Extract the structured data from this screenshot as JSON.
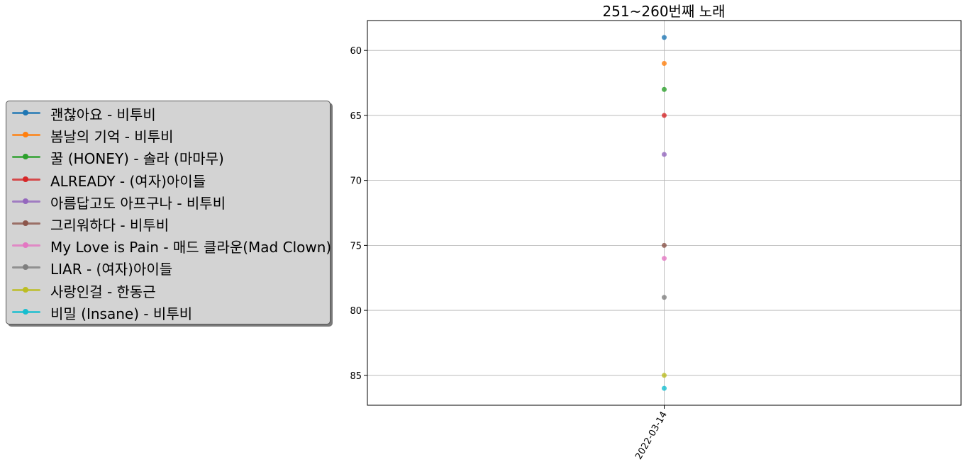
{
  "chart_data": {
    "type": "line",
    "title": "251~260번째 노래",
    "xlabel": "",
    "ylabel": "",
    "x": [
      "2022-03-14"
    ],
    "yaxis_inverted": true,
    "ylim": [
      87.3,
      57.7
    ],
    "yticks": [
      60,
      65,
      70,
      75,
      80,
      85
    ],
    "grid": true,
    "legend_position": "left, outside plot area",
    "series": [
      {
        "name": "괜찮아요 - 비투비",
        "color": "#1f77b4",
        "values": [
          59
        ]
      },
      {
        "name": "봄날의 기억 - 비투비",
        "color": "#ff7f0e",
        "values": [
          61
        ]
      },
      {
        "name": "꿀 (HONEY) - 솔라 (마마무)",
        "color": "#2ca02c",
        "values": [
          63
        ]
      },
      {
        "name": "ALREADY - (여자)아이들",
        "color": "#d62728",
        "values": [
          65
        ]
      },
      {
        "name": "아름답고도 아프구나 - 비투비",
        "color": "#9467bd",
        "values": [
          68
        ]
      },
      {
        "name": "그리워하다 - 비투비",
        "color": "#8c564b",
        "values": [
          75
        ]
      },
      {
        "name": "My Love is Pain - 매드 클라운(Mad Clown)",
        "color": "#e377c2",
        "values": [
          76
        ]
      },
      {
        "name": "LIAR - (여자)아이들",
        "color": "#7f7f7f",
        "values": [
          79
        ]
      },
      {
        "name": "사랑인걸 - 한동근",
        "color": "#bcbd22",
        "values": [
          85
        ]
      },
      {
        "name": "비밀 (Insane) - 비투비",
        "color": "#17becf",
        "values": [
          86
        ]
      }
    ]
  }
}
